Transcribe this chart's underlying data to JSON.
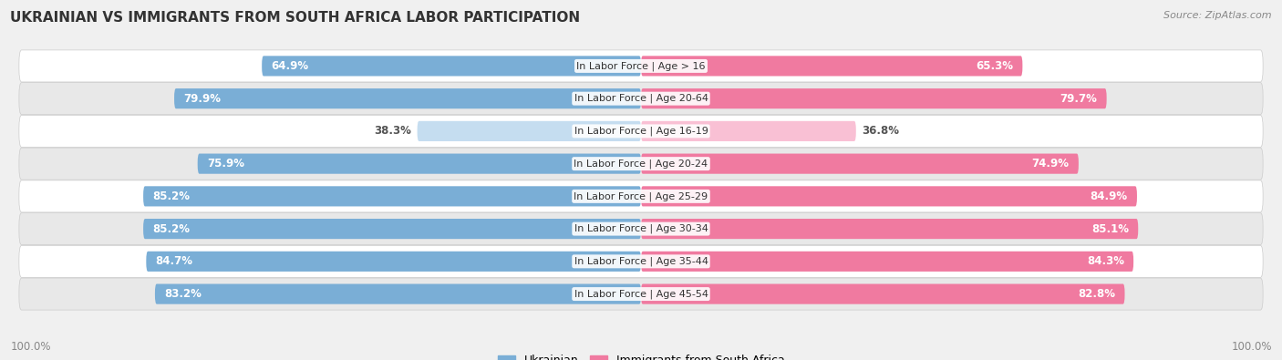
{
  "title": "UKRAINIAN VS IMMIGRANTS FROM SOUTH AFRICA LABOR PARTICIPATION",
  "source": "Source: ZipAtlas.com",
  "categories": [
    "In Labor Force | Age > 16",
    "In Labor Force | Age 20-64",
    "In Labor Force | Age 16-19",
    "In Labor Force | Age 20-24",
    "In Labor Force | Age 25-29",
    "In Labor Force | Age 30-34",
    "In Labor Force | Age 35-44",
    "In Labor Force | Age 45-54"
  ],
  "ukrainian_values": [
    64.9,
    79.9,
    38.3,
    75.9,
    85.2,
    85.2,
    84.7,
    83.2
  ],
  "immigrant_values": [
    65.3,
    79.7,
    36.8,
    74.9,
    84.9,
    85.1,
    84.3,
    82.8
  ],
  "ukrainian_color": "#7aaed6",
  "immigrant_color": "#f07aa0",
  "ukrainian_color_light": "#c5ddf0",
  "immigrant_color_light": "#f9c0d4",
  "background_color": "#f0f0f0",
  "row_bg_color": "#ffffff",
  "row_alt_bg_color": "#e8e8e8",
  "title_fontsize": 11,
  "source_fontsize": 8,
  "bar_label_fontsize": 8.5,
  "category_fontsize": 8,
  "legend_fontsize": 9,
  "footer_fontsize": 8.5,
  "legend_ukrainian": "Ukrainian",
  "legend_immigrant": "Immigrants from South Africa"
}
